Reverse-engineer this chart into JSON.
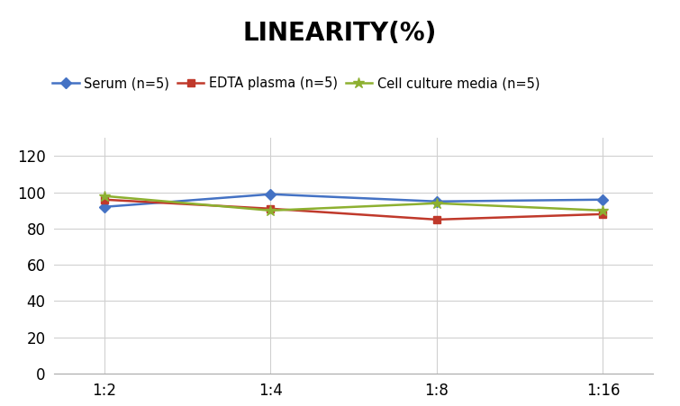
{
  "title": "LINEARITY(%)",
  "title_fontsize": 20,
  "title_fontweight": "bold",
  "x_labels": [
    "1:2",
    "1:4",
    "1:8",
    "1:16"
  ],
  "x_positions": [
    0,
    1,
    2,
    3
  ],
  "series": [
    {
      "label": "Serum (n=5)",
      "values": [
        92.0,
        99.0,
        95.0,
        96.0
      ],
      "color": "#4472C4",
      "marker": "D",
      "markersize": 6,
      "linewidth": 1.8
    },
    {
      "label": "EDTA plasma (n=5)",
      "values": [
        96.0,
        91.0,
        85.0,
        88.0
      ],
      "color": "#C0392B",
      "marker": "s",
      "markersize": 6,
      "linewidth": 1.8
    },
    {
      "label": "Cell culture media (n=5)",
      "values": [
        98.0,
        90.0,
        94.0,
        90.0
      ],
      "color": "#8DB030",
      "marker": "*",
      "markersize": 9,
      "linewidth": 1.8
    }
  ],
  "ylim": [
    0,
    130
  ],
  "yticks": [
    0,
    20,
    40,
    60,
    80,
    100,
    120
  ],
  "grid_color": "#D0D0D0",
  "grid_linewidth": 0.8,
  "background_color": "#FFFFFF",
  "legend_fontsize": 10.5,
  "tick_labelsize": 12
}
